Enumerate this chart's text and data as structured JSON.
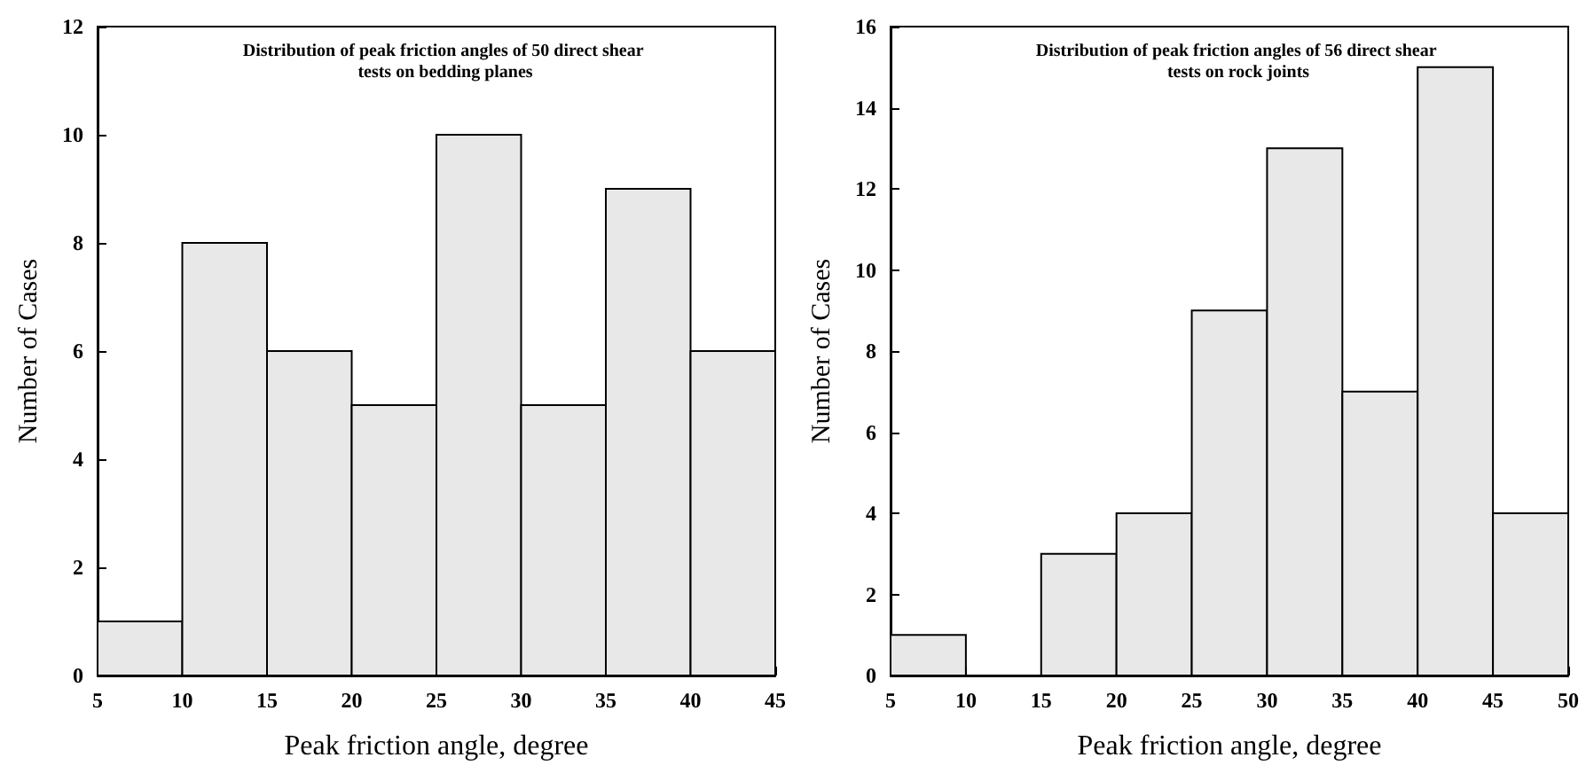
{
  "chart_data": [
    {
      "type": "histogram",
      "title": "Distribution of peak friction angles of 50 direct shear tests on bedding planes",
      "xlabel": "Peak friction angle, degree",
      "ylabel": "Number of Cases",
      "bins": [
        5,
        10,
        15,
        20,
        25,
        30,
        35,
        40,
        45
      ],
      "values": [
        1,
        8,
        6,
        5,
        10,
        5,
        9,
        6
      ],
      "color": "#e8e8e8",
      "xlim": [
        5,
        45
      ],
      "xticks": [
        5,
        10,
        15,
        20,
        25,
        30,
        35,
        40,
        45
      ],
      "ylim": [
        0,
        12
      ],
      "yticks": [
        0,
        2,
        4,
        6,
        8,
        10,
        12
      ],
      "grid": false,
      "legend": false
    },
    {
      "type": "histogram",
      "title": "Distribution of peak friction angles of 56 direct shear tests on rock joints",
      "xlabel": "Peak friction angle, degree",
      "ylabel": "Number of Cases",
      "bins": [
        5,
        10,
        15,
        20,
        25,
        30,
        35,
        40,
        45,
        50
      ],
      "values": [
        1,
        0,
        3,
        4,
        9,
        13,
        7,
        15,
        4
      ],
      "color": "#e8e8e8",
      "xlim": [
        5,
        50
      ],
      "xticks": [
        5,
        10,
        15,
        20,
        25,
        30,
        35,
        40,
        45,
        50
      ],
      "ylim": [
        0,
        16
      ],
      "yticks": [
        0,
        2,
        4,
        6,
        8,
        10,
        12,
        14,
        16
      ],
      "grid": false,
      "legend": false
    }
  ]
}
